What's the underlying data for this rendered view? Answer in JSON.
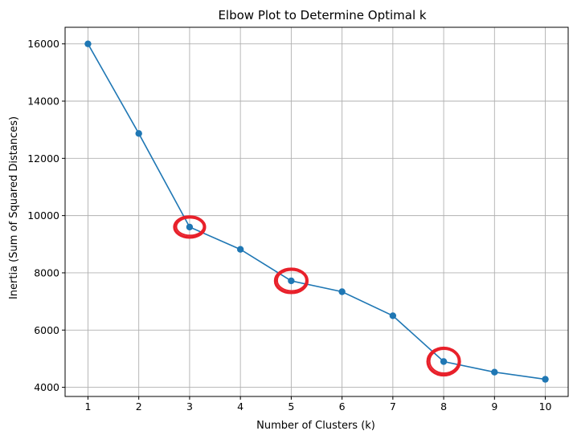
{
  "chart_data": {
    "type": "line",
    "title": "Elbow Plot to Determine Optimal k",
    "xlabel": "Number of Clusters (k)",
    "ylabel": "Inertia (Sum of Squared Distances)",
    "x": [
      1,
      2,
      3,
      4,
      5,
      6,
      7,
      8,
      9,
      10
    ],
    "series": [
      {
        "name": "Inertia",
        "values": [
          16000,
          12870,
          9600,
          8820,
          7720,
          7340,
          6500,
          4900,
          4530,
          4280
        ]
      }
    ],
    "xlim": [
      0.55,
      10.45
    ],
    "ylim": [
      3680,
      16580
    ],
    "xticks": [
      1,
      2,
      3,
      4,
      5,
      6,
      7,
      8,
      9,
      10
    ],
    "yticks": [
      4000,
      6000,
      8000,
      10000,
      12000,
      14000,
      16000
    ],
    "grid": true,
    "highlighted_k": [
      3,
      5,
      8
    ],
    "colors": {
      "line": "#1f77b4",
      "highlight": "#e8202a",
      "grid": "#b0b0b0"
    }
  }
}
